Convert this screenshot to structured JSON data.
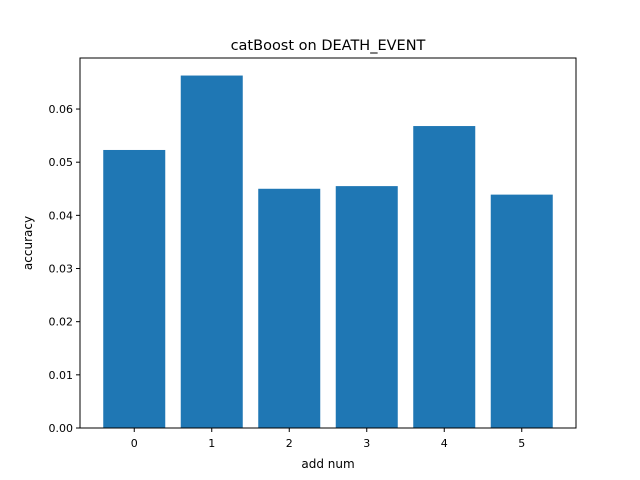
{
  "chart_data": {
    "type": "bar",
    "title": "catBoost on DEATH_EVENT",
    "xlabel": "add num",
    "ylabel": "accuracy",
    "categories": [
      "0",
      "1",
      "2",
      "3",
      "4",
      "5"
    ],
    "values": [
      0.0523,
      0.0663,
      0.045,
      0.0455,
      0.0568,
      0.0439
    ],
    "ylim": [
      0,
      0.0696
    ],
    "xlim": [
      -0.7,
      5.7
    ],
    "yticks": [
      0.0,
      0.01,
      0.02,
      0.03,
      0.04,
      0.05,
      0.06
    ],
    "ytick_labels": [
      "0.00",
      "0.01",
      "0.02",
      "0.03",
      "0.04",
      "0.05",
      "0.06"
    ],
    "grid": false,
    "legend": "none",
    "colors": {
      "bar": "#1f77b4",
      "axes": "#000000",
      "background": "#ffffff"
    }
  }
}
